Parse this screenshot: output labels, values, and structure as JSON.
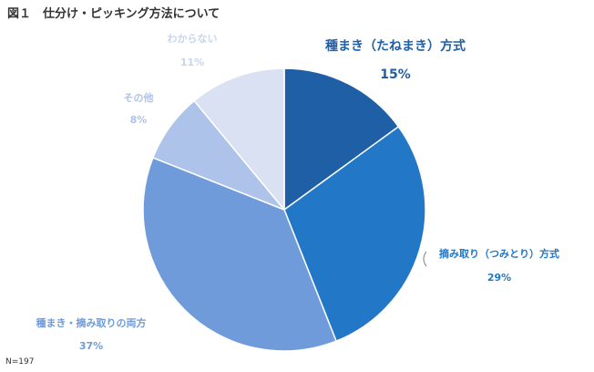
{
  "figure": {
    "title": "図１　仕分け・ピッキング方法について",
    "note": "N=197"
  },
  "chart_data": {
    "type": "pie",
    "title": "図１　仕分け・ピッキング方法について",
    "slices": [
      {
        "label": "種まき（たねまき）方式",
        "percent_label": "15%",
        "value": 15,
        "color": "#1F5FA6",
        "label_color": "#1F5FA6"
      },
      {
        "label": "摘み取り（つみとり）方式",
        "percent_label": "29%",
        "value": 29,
        "color": "#2277C6",
        "label_color": "#2277C6"
      },
      {
        "label": "種まき・摘み取りの両方",
        "percent_label": "37%",
        "value": 37,
        "color": "#6F9BDB",
        "label_color": "#6F9BDB"
      },
      {
        "label": "その他",
        "percent_label": "8%",
        "value": 8,
        "color": "#AEC3EA",
        "label_color": "#AEC3EA"
      },
      {
        "label": "わからない",
        "percent_label": "11%",
        "value": 11,
        "color": "#D9E1F2",
        "label_color": "#C9D5EE"
      }
    ],
    "start": "top",
    "direction": "clockwise",
    "legend": "none"
  }
}
